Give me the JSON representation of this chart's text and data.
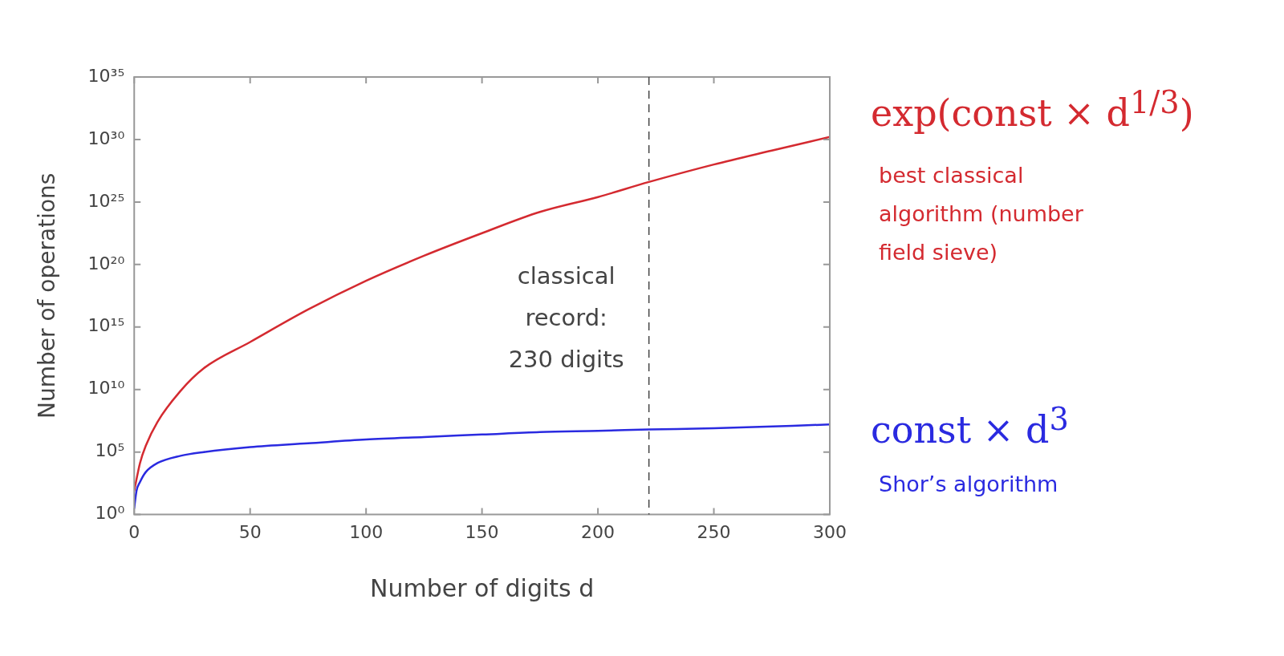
{
  "chart_data": {
    "type": "line",
    "xlabel": "Number of digits d",
    "ylabel": "Number of operations",
    "log": "y",
    "xlim": [
      0,
      300
    ],
    "xticks": [
      0,
      50,
      100,
      150,
      200,
      250,
      300
    ],
    "ylim": [
      1,
      1e+35
    ],
    "yticks": [
      {
        "value": 1,
        "label": "10⁰"
      },
      {
        "value": 100000.0,
        "label": "10⁵"
      },
      {
        "value": 10000000000.0,
        "label": "10¹⁰"
      },
      {
        "value": 1000000000000000.0,
        "label": "10¹⁵"
      },
      {
        "value": 1e+20,
        "label": "10²⁰"
      },
      {
        "value": 1e+25,
        "label": "10²⁵"
      },
      {
        "value": 1e+30,
        "label": "10³⁰"
      },
      {
        "value": 1e+35,
        "label": "10³⁵"
      }
    ],
    "marker": "none",
    "line_style": "solid",
    "series": [
      {
        "name": "exp(const × d$^{1/3}$)",
        "color": "#d42a30",
        "x": [
          0,
          2.5,
          5,
          10,
          20,
          30,
          50,
          75,
          100,
          125,
          150,
          175,
          200,
          222,
          250,
          275,
          300
        ],
        "values": [
          79,
          13000.0,
          320000.0,
          25000000.0,
          7900000000.0,
          500000000000.0,
          63000000000000.0,
          2.5e+16,
          5e+18,
          5e+20,
          3.2e+22,
          1.6e+24,
          2.5e+25,
          4e+26,
          1e+28,
          1.3e+29,
          1.6e+30
        ]
      },
      {
        "name": "const × d$^{3}$",
        "color": "#2a2ae0",
        "x": [
          0,
          1,
          2.5,
          5,
          10,
          20,
          30,
          50,
          75,
          100,
          125,
          150,
          175,
          200,
          222,
          250,
          300
        ],
        "values": [
          3.2,
          79,
          400,
          2500,
          13000.0,
          50000.0,
          100000.0,
          250000.0,
          500000.0,
          1000000.0,
          1600000.0,
          2500000.0,
          4000000.0,
          5000000.0,
          6300000.0,
          7900000.0,
          16000000.0
        ]
      }
    ],
    "ref_lines": [
      {
        "axis": "x",
        "value": 222,
        "color": "#444444",
        "line_style": "dashed"
      }
    ],
    "annotations": [
      "best classical algorithm (number field sieve)",
      "Shor’s algorithm",
      "classical record: 230 digits"
    ]
  }
}
